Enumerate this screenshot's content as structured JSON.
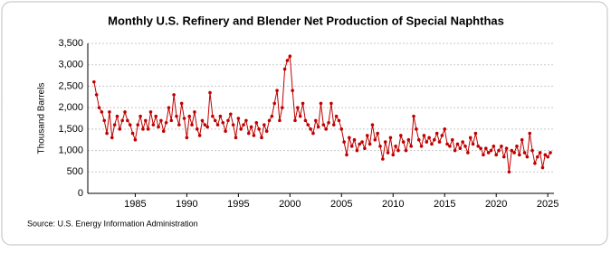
{
  "chart_data": {
    "type": "line",
    "title": "Monthly U.S. Refinery and Blender Net Production of Special Naphthas",
    "y_label": "Thousand Barrels",
    "source": "Source: U.S. Energy Information Administration",
    "x": [
      1981,
      1981.25,
      1981.5,
      1981.75,
      1982,
      1982.25,
      1982.5,
      1982.75,
      1983,
      1983.25,
      1983.5,
      1983.75,
      1984,
      1984.25,
      1984.5,
      1984.75,
      1985,
      1985.25,
      1985.5,
      1985.75,
      1986,
      1986.25,
      1986.5,
      1986.75,
      1987,
      1987.25,
      1987.5,
      1987.75,
      1988,
      1988.25,
      1988.5,
      1988.75,
      1989,
      1989.25,
      1989.5,
      1989.75,
      1990,
      1990.25,
      1990.5,
      1990.75,
      1991,
      1991.25,
      1991.5,
      1991.75,
      1992,
      1992.25,
      1992.5,
      1992.75,
      1993,
      1993.25,
      1993.5,
      1993.75,
      1994,
      1994.25,
      1994.5,
      1994.75,
      1995,
      1995.25,
      1995.5,
      1995.75,
      1996,
      1996.25,
      1996.5,
      1996.75,
      1997,
      1997.25,
      1997.5,
      1997.75,
      1998,
      1998.25,
      1998.5,
      1998.75,
      1999,
      1999.25,
      1999.5,
      1999.75,
      2000,
      2000.25,
      2000.5,
      2000.75,
      2001,
      2001.25,
      2001.5,
      2001.75,
      2002,
      2002.25,
      2002.5,
      2002.75,
      2003,
      2003.25,
      2003.5,
      2003.75,
      2004,
      2004.25,
      2004.5,
      2004.75,
      2005,
      2005.25,
      2005.5,
      2005.75,
      2006,
      2006.25,
      2006.5,
      2006.75,
      2007,
      2007.25,
      2007.5,
      2007.75,
      2008,
      2008.25,
      2008.5,
      2008.75,
      2009,
      2009.25,
      2009.5,
      2009.75,
      2010,
      2010.25,
      2010.5,
      2010.75,
      2011,
      2011.25,
      2011.5,
      2011.75,
      2012,
      2012.25,
      2012.5,
      2012.75,
      2013,
      2013.25,
      2013.5,
      2013.75,
      2014,
      2014.25,
      2014.5,
      2014.75,
      2015,
      2015.25,
      2015.5,
      2015.75,
      2016,
      2016.25,
      2016.5,
      2016.75,
      2017,
      2017.25,
      2017.5,
      2017.75,
      2018,
      2018.25,
      2018.5,
      2018.75,
      2019,
      2019.25,
      2019.5,
      2019.75,
      2020,
      2020.25,
      2020.5,
      2020.75,
      2021,
      2021.25,
      2021.5,
      2021.75,
      2022,
      2022.25,
      2022.5,
      2022.75,
      2023,
      2023.25,
      2023.5,
      2023.75,
      2024,
      2024.25,
      2024.5,
      2024.75,
      2025,
      2025.25
    ],
    "series": [
      {
        "name": "Special Naphthas",
        "color": "#c00000",
        "values": [
          2600,
          2300,
          2000,
          1900,
          1700,
          1400,
          1900,
          1300,
          1600,
          1800,
          1500,
          1700,
          1900,
          1700,
          1600,
          1400,
          1250,
          1600,
          1800,
          1500,
          1700,
          1500,
          1900,
          1600,
          1800,
          1550,
          1700,
          1450,
          1650,
          2000,
          1700,
          2300,
          1800,
          1600,
          2100,
          1750,
          1300,
          1800,
          1600,
          1900,
          1500,
          1350,
          1700,
          1600,
          1550,
          2350,
          1800,
          1700,
          1600,
          1800,
          1650,
          1450,
          1700,
          1850,
          1600,
          1300,
          1750,
          1500,
          1600,
          1700,
          1400,
          1550,
          1350,
          1650,
          1500,
          1300,
          1600,
          1450,
          1700,
          1800,
          2100,
          2400,
          1700,
          2000,
          2900,
          3100,
          3200,
          2400,
          1700,
          2000,
          1800,
          2100,
          1700,
          1600,
          1500,
          1400,
          1700,
          1550,
          2100,
          1600,
          1500,
          1650,
          2100,
          1600,
          1800,
          1700,
          1500,
          1200,
          900,
          1300,
          1100,
          1250,
          1000,
          1150,
          1200,
          1050,
          1350,
          1150,
          1600,
          1250,
          1400,
          1100,
          800,
          1200,
          950,
          1300,
          900,
          1100,
          1000,
          1350,
          1200,
          1000,
          1250,
          1100,
          1800,
          1500,
          1250,
          1100,
          1350,
          1200,
          1300,
          1150,
          1250,
          1400,
          1200,
          1350,
          1500,
          1150,
          1100,
          1250,
          1000,
          1150,
          1050,
          1200,
          1100,
          950,
          1300,
          1150,
          1400,
          1100,
          1050,
          900,
          1050,
          950,
          1000,
          1100,
          900,
          1000,
          1100,
          850,
          1050,
          500,
          1000,
          950,
          1100,
          900,
          1250,
          950,
          850,
          1400,
          1000,
          700,
          850,
          950,
          600,
          900,
          850,
          950
        ]
      }
    ],
    "xlim": [
      1980.4,
      2025.6
    ],
    "ylim": [
      0,
      3500
    ],
    "xticks": [
      1985,
      1990,
      1995,
      2000,
      2005,
      2010,
      2015,
      2020,
      2025
    ],
    "yticks": [
      0,
      500,
      {
        "value": 1000,
        "label": "1,000"
      },
      {
        "value": 1500,
        "label": "1,500"
      },
      {
        "value": 2000,
        "label": "2,000"
      },
      {
        "value": 2500,
        "label": "2,500"
      },
      {
        "value": 3000,
        "label": "3,000"
      },
      {
        "value": 3500,
        "label": "3,500"
      }
    ],
    "grid": true
  }
}
